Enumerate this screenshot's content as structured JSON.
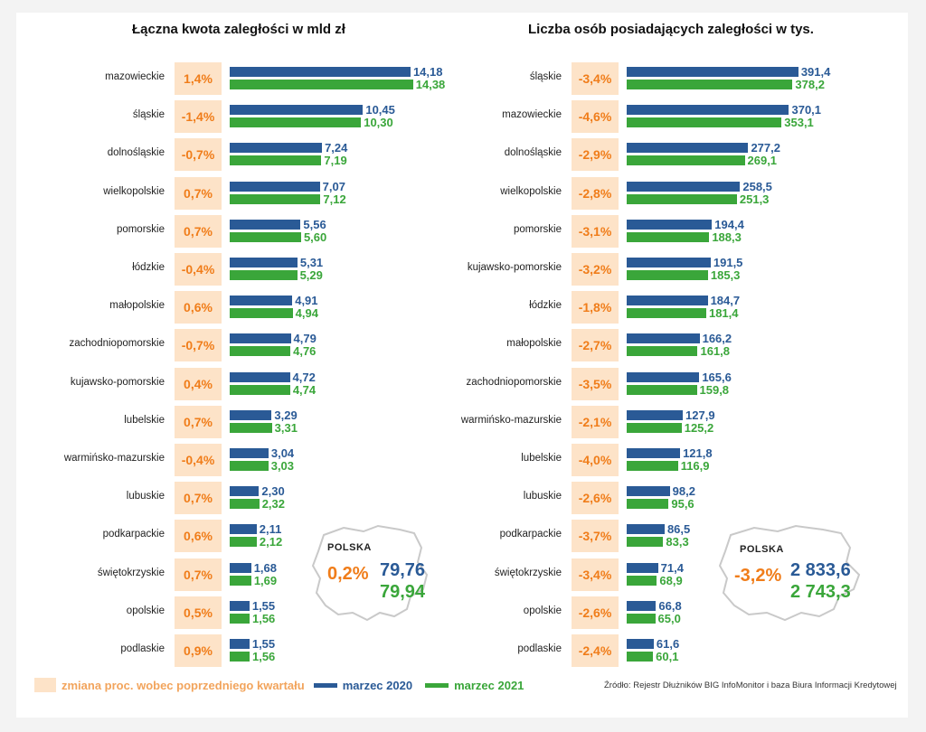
{
  "chart_data": [
    {
      "type": "bar",
      "title": "Łączna kwota zaległości w mld zł",
      "categories": [
        "mazowieckie",
        "śląskie",
        "dolnośląskie",
        "wielkopolskie",
        "pomorskie",
        "łódzkie",
        "małopolskie",
        "zachodniopomorskie",
        "kujawsko-pomorskie",
        "lubelskie",
        "warmińsko-mazurskie",
        "lubuskie",
        "podkarpackie",
        "świętokrzyskie",
        "opolskie",
        "podlaskie"
      ],
      "change_pct": [
        "1,4%",
        "-1,4%",
        "-0,7%",
        "0,7%",
        "0,7%",
        "-0,4%",
        "0,6%",
        "-0,7%",
        "0,4%",
        "0,7%",
        "-0,4%",
        "0,7%",
        "0,6%",
        "0,7%",
        "0,5%",
        "0,9%"
      ],
      "series": [
        {
          "name": "marzec 2020",
          "values": [
            14.18,
            10.45,
            7.24,
            7.07,
            5.56,
            5.31,
            4.91,
            4.79,
            4.72,
            3.29,
            3.04,
            2.3,
            2.11,
            1.68,
            1.55,
            1.55
          ],
          "labels": [
            "14,18",
            "10,45",
            "7,24",
            "7,07",
            "5,56",
            "5,31",
            "4,91",
            "4,79",
            "4,72",
            "3,29",
            "3,04",
            "2,30",
            "2,11",
            "1,68",
            "1,55",
            "1,55"
          ]
        },
        {
          "name": "marzec 2021",
          "values": [
            14.38,
            10.3,
            7.19,
            7.12,
            5.6,
            5.29,
            4.94,
            4.76,
            4.74,
            3.31,
            3.03,
            2.32,
            2.12,
            1.69,
            1.56,
            1.56
          ],
          "labels": [
            "14,38",
            "10,30",
            "7,19",
            "7,12",
            "5,60",
            "5,29",
            "4,94",
            "4,76",
            "4,74",
            "3,31",
            "3,03",
            "2,32",
            "2,12",
            "1,69",
            "1,56",
            "1,56"
          ]
        }
      ],
      "total": {
        "label": "POLSKA",
        "change_pct": "0,2%",
        "v2020": "79,76",
        "v2021": "79,94"
      }
    },
    {
      "type": "bar",
      "title": "Liczba osób posiadających zaległości w tys.",
      "categories": [
        "śląskie",
        "mazowieckie",
        "dolnośląskie",
        "wielkopolskie",
        "pomorskie",
        "kujawsko-pomorskie",
        "łódzkie",
        "małopolskie",
        "zachodniopomorskie",
        "warmińsko-mazurskie",
        "lubelskie",
        "lubuskie",
        "podkarpackie",
        "świętokrzyskie",
        "opolskie",
        "podlaskie"
      ],
      "change_pct": [
        "-3,4%",
        "-4,6%",
        "-2,9%",
        "-2,8%",
        "-3,1%",
        "-3,2%",
        "-1,8%",
        "-2,7%",
        "-3,5%",
        "-2,1%",
        "-4,0%",
        "-2,6%",
        "-3,7%",
        "-3,4%",
        "-2,6%",
        "-2,4%"
      ],
      "series": [
        {
          "name": "marzec 2020",
          "values": [
            391.4,
            370.1,
            277.2,
            258.5,
            194.4,
            191.5,
            184.7,
            166.2,
            165.6,
            127.9,
            121.8,
            98.2,
            86.5,
            71.4,
            66.8,
            61.6
          ],
          "labels": [
            "391,4",
            "370,1",
            "277,2",
            "258,5",
            "194,4",
            "191,5",
            "184,7",
            "166,2",
            "165,6",
            "127,9",
            "121,8",
            "98,2",
            "86,5",
            "71,4",
            "66,8",
            "61,6"
          ]
        },
        {
          "name": "marzec 2021",
          "values": [
            378.2,
            353.1,
            269.1,
            251.3,
            188.3,
            185.3,
            181.4,
            161.8,
            159.8,
            125.2,
            116.9,
            95.6,
            83.3,
            68.9,
            65.0,
            60.1
          ],
          "labels": [
            "378,2",
            "353,1",
            "269,1",
            "251,3",
            "188,3",
            "185,3",
            "181,4",
            "161,8",
            "159,8",
            "125,2",
            "116,9",
            "95,6",
            "83,3",
            "68,9",
            "65,0",
            "60,1"
          ]
        }
      ],
      "total": {
        "label": "POLSKA",
        "change_pct": "-3,2%",
        "v2020": "2 833,6",
        "v2021": "2 743,3"
      }
    }
  ],
  "legend": {
    "pct_label": "zmiana proc. wobec poprzedniego kwartału",
    "s2020": "marzec 2020",
    "s2021": "marzec 2021"
  },
  "source": "Źródło: Rejestr Dłużników BIG InfoMonitor i baza Biura Informacji Kredytowej",
  "colors": {
    "s2020": "#2a5a96",
    "s2021": "#3aa63a",
    "pct_bg": "#fde3c8",
    "pct_text": "#f07d1a"
  }
}
